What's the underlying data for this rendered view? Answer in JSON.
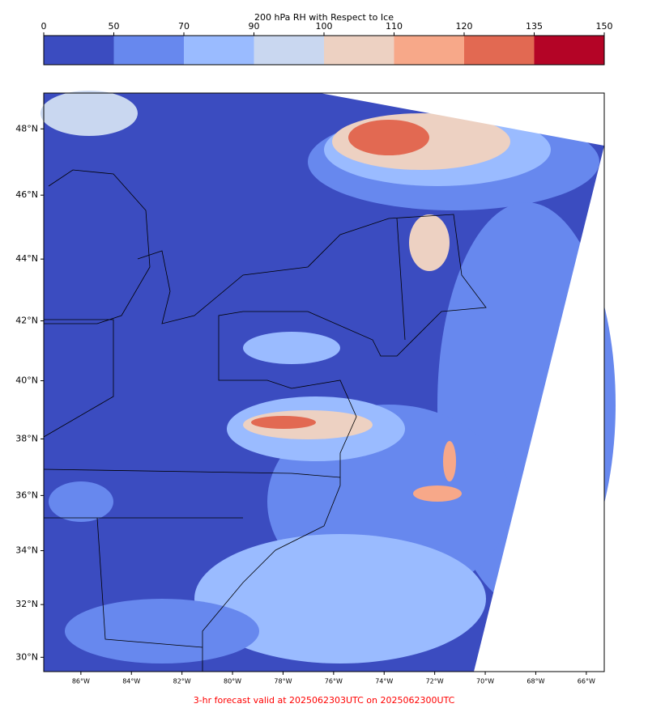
{
  "colorbar": {
    "title": "200 hPa RH with Respect to Ice",
    "ticks": [
      0,
      50,
      70,
      90,
      100,
      110,
      120,
      135,
      150
    ],
    "colors": [
      "#3b4cc0",
      "#6788ee",
      "#9abbff",
      "#c9d7f0",
      "#edd1c2",
      "#f7a889",
      "#e26952",
      "#b40426"
    ]
  },
  "map": {
    "xlim": [
      -87.47,
      -65.29
    ],
    "ylim": [
      29.45,
      49.05
    ],
    "yticks": [
      {
        "value": 30,
        "label": "30°N"
      },
      {
        "value": 32,
        "label": "32°N"
      },
      {
        "value": 34,
        "label": "34°N"
      },
      {
        "value": 36,
        "label": "36°N"
      },
      {
        "value": 38,
        "label": "38°N"
      },
      {
        "value": 40,
        "label": "40°N"
      },
      {
        "value": 42,
        "label": "42°N"
      },
      {
        "value": 44,
        "label": "44°N"
      },
      {
        "value": 46,
        "label": "46°N"
      },
      {
        "value": 48,
        "label": "48°N"
      }
    ],
    "xticks": [
      {
        "value": -86,
        "label": "86°W"
      },
      {
        "value": -84,
        "label": "84°W"
      },
      {
        "value": -82,
        "label": "82°W"
      },
      {
        "value": -80,
        "label": "80°W"
      },
      {
        "value": -78,
        "label": "78°W"
      },
      {
        "value": -76,
        "label": "76°W"
      },
      {
        "value": -74,
        "label": "74°W"
      },
      {
        "value": -72,
        "label": "72°W"
      },
      {
        "value": -70,
        "label": "70°W"
      },
      {
        "value": -68,
        "label": "68°W"
      },
      {
        "value": -66,
        "label": "66°W"
      }
    ]
  },
  "footer": "3-hr forecast valid at 2025062303UTC on 2025062300UTC"
}
